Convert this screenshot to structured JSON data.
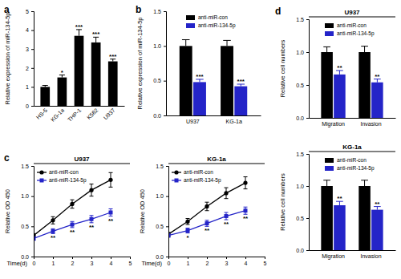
{
  "chart_data": [
    {
      "type": "bar",
      "panel": "a",
      "y_label": "Relative expression of miR-134-5p",
      "categories": [
        "HS-5",
        "KG-1a",
        "THP-1",
        "K562",
        "U937"
      ],
      "values": [
        1.0,
        1.5,
        3.7,
        3.35,
        2.35
      ],
      "errors": [
        0.08,
        0.13,
        0.33,
        0.28,
        0.12
      ],
      "annotations": [
        null,
        "*",
        "***",
        "***",
        "***"
      ],
      "color": "#000000",
      "ylim": [
        0,
        5
      ],
      "yticks": [
        0,
        1,
        2,
        3,
        4,
        5
      ]
    },
    {
      "type": "bar",
      "panel": "b",
      "y_label": "Relative expression of miR-134-5p",
      "categories": [
        "U937",
        "KG-1a"
      ],
      "series": [
        {
          "name": "anti-miR-con",
          "color": "#000000",
          "values": [
            1.0,
            1.0
          ],
          "errors": [
            0.09,
            0.08
          ]
        },
        {
          "name": "anti-miR-134-5p",
          "color": "#2424c8",
          "values": [
            0.48,
            0.42
          ],
          "errors": [
            0.04,
            0.03
          ],
          "annotations": [
            "***",
            "***"
          ]
        }
      ],
      "ylim": [
        0,
        1.5
      ],
      "yticks": [
        {
          "value": 0,
          "label": "0.0"
        },
        0.5,
        {
          "value": 1,
          "label": "1.0"
        },
        1.5
      ],
      "legend": "top"
    },
    {
      "type": "line",
      "panel": "c",
      "title": "U937",
      "y_label": "Relative OD 450",
      "x_label": "Time(d)",
      "x": [
        0,
        1,
        2,
        3,
        4
      ],
      "series": [
        {
          "name": "anti-miR-con",
          "color": "#000000",
          "marker": "circle",
          "line_style": "solid",
          "values": [
            0.35,
            0.6,
            0.87,
            1.1,
            1.27
          ],
          "errors": [
            0.03,
            0.06,
            0.07,
            0.1,
            0.12
          ]
        },
        {
          "name": "anti-miR-134-5p",
          "color": "#2424c8",
          "marker": "square",
          "line_style": "solid",
          "values": [
            0.3,
            0.42,
            0.53,
            0.62,
            0.73
          ],
          "errors": [
            0.03,
            0.04,
            0.05,
            0.06,
            0.06
          ],
          "annotations": [
            null,
            "**",
            "**",
            "**",
            "**"
          ]
        }
      ],
      "xlim": [
        0,
        5
      ],
      "xticks": [
        0,
        1,
        2,
        3,
        4,
        5
      ],
      "ylim": [
        0,
        1.5
      ],
      "yticks": [
        {
          "value": 0,
          "label": "0.0"
        },
        0.5,
        {
          "value": 1,
          "label": "1.0"
        },
        1.5
      ],
      "legend": "top-left"
    },
    {
      "type": "line",
      "title": "KG-1a",
      "y_label": "Relative OD 450",
      "x_label": "Time(d)",
      "x": [
        0,
        1,
        2,
        3,
        4
      ],
      "series": [
        {
          "name": "anti-miR-con",
          "color": "#000000",
          "marker": "circle",
          "line_style": "solid",
          "values": [
            0.37,
            0.58,
            0.83,
            1.05,
            1.22
          ],
          "errors": [
            0.03,
            0.05,
            0.07,
            0.09,
            0.1
          ]
        },
        {
          "name": "anti-miR-134-5p",
          "color": "#2424c8",
          "marker": "square",
          "line_style": "solid",
          "values": [
            0.35,
            0.43,
            0.55,
            0.67,
            0.76
          ],
          "errors": [
            0.03,
            0.04,
            0.05,
            0.06,
            0.06
          ],
          "annotations": [
            null,
            "*",
            "**",
            "**",
            "**"
          ]
        }
      ],
      "xlim": [
        0,
        5
      ],
      "xticks": [
        0,
        1,
        2,
        3,
        4,
        5
      ],
      "ylim": [
        0,
        1.5
      ],
      "yticks": [
        {
          "value": 0,
          "label": "0.0"
        },
        0.5,
        {
          "value": 1,
          "label": "1.0"
        },
        1.5
      ],
      "legend": "top-left"
    },
    {
      "type": "bar",
      "panel": "d",
      "title": "U937",
      "y_label": "Relative cell numbers",
      "categories": [
        "Migration",
        "Invasion"
      ],
      "series": [
        {
          "name": "anti-miR-con",
          "color": "#000000",
          "values": [
            1.0,
            1.0
          ],
          "errors": [
            0.08,
            0.09
          ]
        },
        {
          "name": "anti-miR-134-5p",
          "color": "#2424c8",
          "values": [
            0.66,
            0.54
          ],
          "errors": [
            0.06,
            0.05
          ],
          "annotations": [
            "**",
            "**"
          ]
        }
      ],
      "ylim": [
        0,
        1.5
      ],
      "yticks": [
        {
          "value": 0,
          "label": "0.0"
        },
        0.5,
        {
          "value": 1,
          "label": "1.0"
        },
        1.5
      ],
      "legend": "top"
    },
    {
      "type": "bar",
      "title": "KG-1a",
      "y_label": "Relative cell numbers",
      "categories": [
        "Migration",
        "Invasion"
      ],
      "series": [
        {
          "name": "anti-miR-con",
          "color": "#000000",
          "values": [
            1.0,
            1.0
          ],
          "errors": [
            0.09,
            0.09
          ]
        },
        {
          "name": "anti-miR-134-5p",
          "color": "#2424c8",
          "values": [
            0.7,
            0.63
          ],
          "errors": [
            0.06,
            0.05
          ],
          "annotations": [
            "**",
            "**"
          ]
        }
      ],
      "ylim": [
        0,
        1.5
      ],
      "yticks": [
        {
          "value": 0,
          "label": "0.0"
        },
        0.5,
        {
          "value": 1,
          "label": "1.0"
        },
        1.5
      ],
      "legend": "top"
    }
  ]
}
